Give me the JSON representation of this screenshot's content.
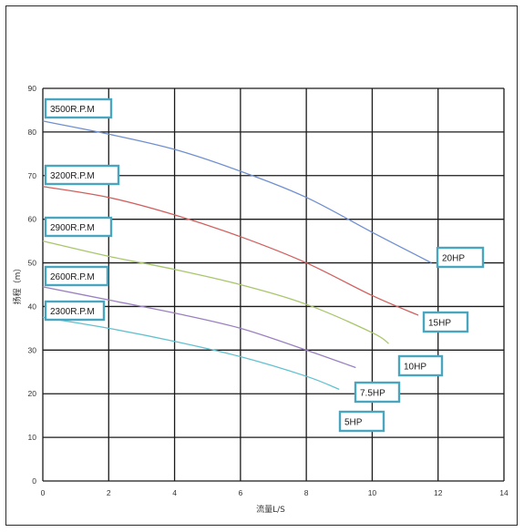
{
  "chart_data": {
    "type": "line",
    "xlabel": "流量L/S",
    "ylabel": "扬程（m）",
    "xlim": [
      0,
      14
    ],
    "ylim": [
      0,
      90
    ],
    "x_ticks": [
      "0",
      "2",
      "4",
      "6",
      "8",
      "10",
      "12",
      "14"
    ],
    "y_ticks": [
      "0",
      "10",
      "20",
      "30",
      "40",
      "50",
      "60",
      "70",
      "80",
      "90"
    ],
    "grid": true,
    "series": [
      {
        "name": "3500R.P.M",
        "end_label": "20HP",
        "color": "#6f8fd0",
        "x": [
          0,
          2,
          4,
          6,
          8,
          10,
          11.8
        ],
        "y": [
          82.5,
          79.5,
          76,
          71,
          65,
          57,
          50
        ]
      },
      {
        "name": "3200R.P.M",
        "end_label": "15HP",
        "color": "#d0605e",
        "x": [
          0,
          2,
          4,
          6,
          8,
          10,
          11.4
        ],
        "y": [
          67.5,
          65,
          61,
          56,
          50,
          42.5,
          38
        ]
      },
      {
        "name": "2900R.P.M",
        "end_label": "10HP",
        "color": "#a8c66a",
        "x": [
          0,
          2,
          4,
          6,
          8,
          10,
          10.5
        ],
        "y": [
          55,
          51.5,
          48.5,
          45,
          40.5,
          34,
          31.5
        ]
      },
      {
        "name": "2600R.P.M",
        "end_label": "7.5HP",
        "color": "#9a80c0",
        "x": [
          0,
          2,
          4,
          6,
          8,
          9.5
        ],
        "y": [
          44.5,
          41.5,
          38.5,
          35,
          30,
          26
        ]
      },
      {
        "name": "2300R.P.M",
        "end_label": "5HP",
        "color": "#62c1cf",
        "x": [
          0,
          2,
          4,
          6,
          8,
          9
        ],
        "y": [
          37.5,
          35,
          32,
          28.5,
          24,
          21
        ]
      }
    ]
  },
  "colors": {
    "frame": "#2b2b2b",
    "grid": "#1a1a1a",
    "label_box_border": "#4aa6be"
  }
}
